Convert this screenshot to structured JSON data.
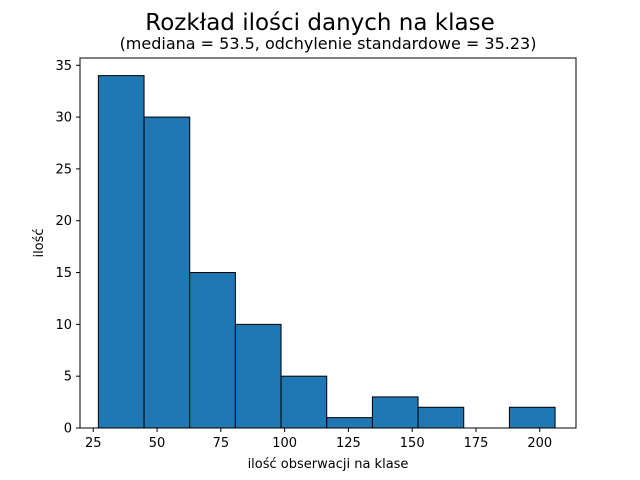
{
  "chart_data": {
    "type": "bar",
    "title": "Rozkład ilości danych na klase",
    "subtitle": "(mediana = 53.5, odchylenie standardowe = 35.23)",
    "xlabel": "ilość obserwacji na klase",
    "ylabel": "ilość",
    "bin_edges": [
      27,
      44.9,
      62.8,
      80.7,
      98.6,
      116.5,
      134.4,
      152.3,
      170.2,
      188.1,
      206
    ],
    "values": [
      34,
      30,
      15,
      10,
      5,
      1,
      3,
      2,
      0,
      2
    ],
    "xlim": [
      19.8,
      214.2
    ],
    "ylim": [
      0,
      35.7
    ],
    "xticks": [
      25,
      50,
      75,
      100,
      125,
      150,
      175,
      200
    ],
    "yticks": [
      0,
      5,
      10,
      15,
      20,
      25,
      30,
      35
    ],
    "bar_color": "#1f77b4",
    "edge_color": "#000000",
    "grid": false
  }
}
